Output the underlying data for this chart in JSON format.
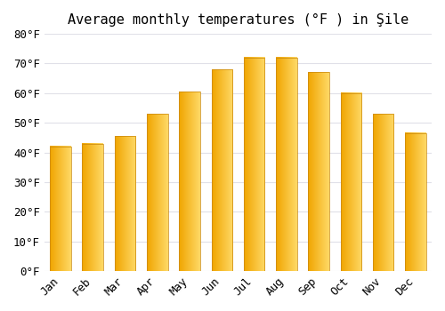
{
  "title": "Average monthly temperatures (°F ) in Şile",
  "months": [
    "Jan",
    "Feb",
    "Mar",
    "Apr",
    "May",
    "Jun",
    "Jul",
    "Aug",
    "Sep",
    "Oct",
    "Nov",
    "Dec"
  ],
  "values": [
    42,
    43,
    45.5,
    53,
    60.5,
    68,
    72,
    72,
    67,
    60,
    53,
    46.5
  ],
  "bar_color_left": "#F0A500",
  "bar_color_right": "#FFD966",
  "bar_edge_color": "#C8860A",
  "ylim": [
    0,
    80
  ],
  "yticks": [
    0,
    10,
    20,
    30,
    40,
    50,
    60,
    70,
    80
  ],
  "ytick_labels": [
    "0°F",
    "10°F",
    "20°F",
    "30°F",
    "40°F",
    "50°F",
    "60°F",
    "70°F",
    "80°F"
  ],
  "background_color": "#ffffff",
  "grid_color": "#e0e0e8",
  "font_family": "monospace",
  "title_fontsize": 11,
  "tick_fontsize": 9,
  "bar_width": 0.65
}
